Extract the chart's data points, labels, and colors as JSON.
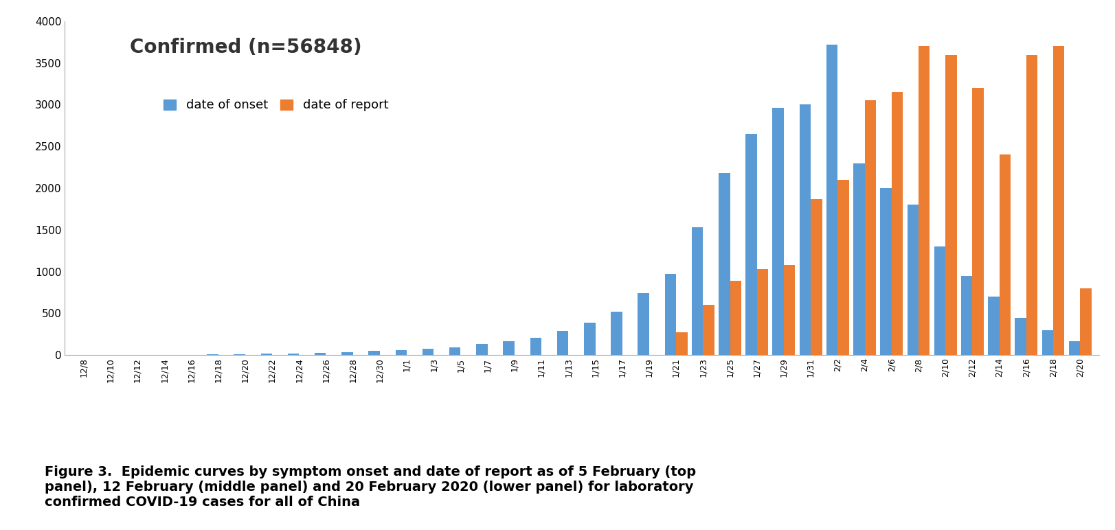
{
  "title": "Confirmed (n=56848)",
  "title_fontsize": 20,
  "title_fontweight": "bold",
  "legend_onset": "date of onset",
  "legend_report": "date of report",
  "color_onset": "#5B9BD5",
  "color_report": "#ED7D31",
  "ylim": [
    0,
    4000
  ],
  "yticks": [
    0,
    500,
    1000,
    1500,
    2000,
    2500,
    3000,
    3500,
    4000
  ],
  "caption_line1": "Figure 3.  Epidemic curves by symptom onset and date of report as of 5 February (top",
  "caption_line2": "panel), 12 February (middle panel) and 20 February 2020 (lower panel) for laboratory",
  "caption_line3": "confirmed COVID-19 cases for all of China",
  "xtick_labels": [
    "12/8",
    "12/10",
    "12/12",
    "12/14",
    "12/16",
    "12/18",
    "12/20",
    "12/22",
    "12/24",
    "12/26",
    "12/28",
    "12/30",
    "1/1",
    "1/3",
    "1/5",
    "1/7",
    "1/9",
    "1/11",
    "1/13",
    "1/15",
    "1/17",
    "1/19",
    "1/21",
    "1/23",
    "1/25",
    "1/27",
    "1/29",
    "1/31",
    "2/2",
    "2/4",
    "2/6",
    "2/8",
    "2/10",
    "2/12",
    "2/14",
    "2/16",
    "2/18",
    "2/20"
  ],
  "onset_values": [
    2,
    2,
    3,
    4,
    5,
    8,
    12,
    18,
    20,
    30,
    35,
    50,
    60,
    75,
    90,
    130,
    170,
    210,
    290,
    390,
    520,
    740,
    970,
    1530,
    2180,
    2650,
    2960,
    3000,
    3720,
    2300,
    2000,
    1800,
    1300,
    950,
    700,
    450,
    300,
    170
  ],
  "report_values": [
    0,
    0,
    0,
    0,
    0,
    0,
    0,
    0,
    0,
    0,
    0,
    0,
    0,
    0,
    0,
    0,
    0,
    0,
    0,
    0,
    0,
    0,
    270,
    600,
    890,
    1030,
    1080,
    1870,
    2100,
    3050,
    3150,
    3700,
    3600,
    3200,
    2400,
    3600,
    3700,
    800
  ]
}
